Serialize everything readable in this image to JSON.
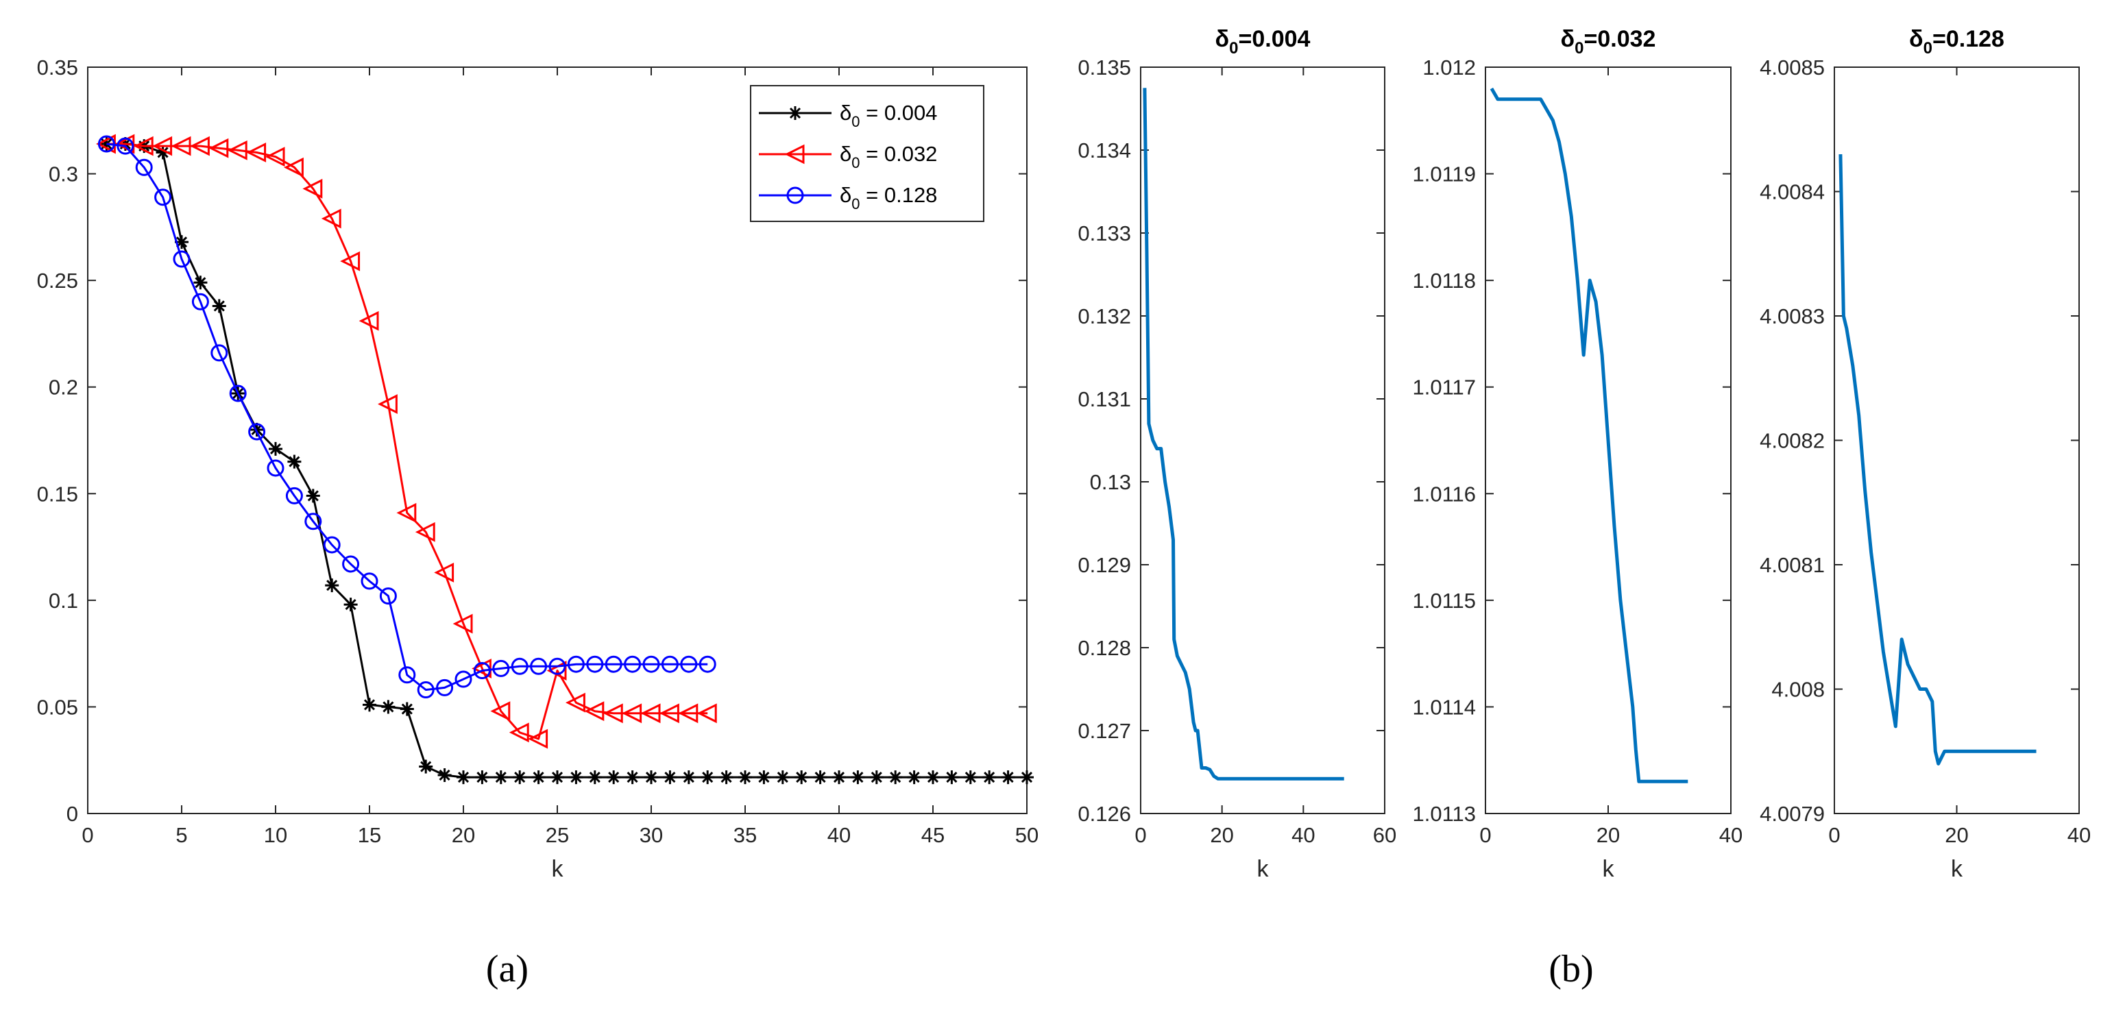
{
  "figure": {
    "panel_a_label": "(a)",
    "panel_b_label": "(b)"
  },
  "chart_data": [
    {
      "type": "line",
      "panel": "a",
      "title": "",
      "xlabel": "k",
      "ylabel": "",
      "xlim": [
        0,
        50
      ],
      "ylim": [
        0,
        0.35
      ],
      "xticks": [
        0,
        5,
        10,
        15,
        20,
        25,
        30,
        35,
        40,
        45,
        50
      ],
      "yticks": [
        0,
        0.05,
        0.1,
        0.15,
        0.2,
        0.25,
        0.3,
        0.35
      ],
      "xtick_labels": [
        "0",
        "5",
        "10",
        "15",
        "20",
        "25",
        "30",
        "35",
        "40",
        "45",
        "50"
      ],
      "ytick_labels": [
        "0",
        "0.05",
        "0.1",
        "0.15",
        "0.2",
        "0.25",
        "0.3",
        "0.35"
      ],
      "legend_position": "top-right",
      "series": [
        {
          "name": "δ0 = 0.004",
          "legend_sym": "δ",
          "legend_sub": "0",
          "legend_rest": " = 0.004",
          "color": "#000000",
          "marker": "asterisk",
          "x": [
            1,
            2,
            3,
            4,
            5,
            6,
            7,
            8,
            9,
            10,
            11,
            12,
            13,
            14,
            15,
            16,
            17,
            18,
            19,
            20,
            21,
            22,
            23,
            24,
            25,
            26,
            27,
            28,
            29,
            30,
            31,
            32,
            33,
            34,
            35,
            36,
            37,
            38,
            39,
            40,
            41,
            42,
            43,
            44,
            45,
            46,
            47,
            48,
            49,
            50
          ],
          "y": [
            0.314,
            0.314,
            0.313,
            0.31,
            0.268,
            0.249,
            0.238,
            0.197,
            0.18,
            0.171,
            0.165,
            0.149,
            0.107,
            0.098,
            0.051,
            0.05,
            0.049,
            0.022,
            0.018,
            0.017,
            0.017,
            0.017,
            0.017,
            0.017,
            0.017,
            0.017,
            0.017,
            0.017,
            0.017,
            0.017,
            0.017,
            0.017,
            0.017,
            0.017,
            0.017,
            0.017,
            0.017,
            0.017,
            0.017,
            0.017,
            0.017,
            0.017,
            0.017,
            0.017,
            0.017,
            0.017,
            0.017,
            0.017,
            0.017,
            0.017
          ]
        },
        {
          "name": "δ0 = 0.032",
          "legend_sym": "δ",
          "legend_sub": "0",
          "legend_rest": " = 0.032",
          "color": "#ff0000",
          "marker": "triangle-left",
          "x": [
            1,
            2,
            3,
            4,
            5,
            6,
            7,
            8,
            9,
            10,
            11,
            12,
            13,
            14,
            15,
            16,
            17,
            18,
            19,
            20,
            21,
            22,
            23,
            24,
            25,
            26,
            27,
            28,
            29,
            30,
            31,
            32,
            33
          ],
          "y": [
            0.314,
            0.314,
            0.313,
            0.313,
            0.313,
            0.313,
            0.312,
            0.311,
            0.31,
            0.308,
            0.303,
            0.293,
            0.279,
            0.259,
            0.231,
            0.192,
            0.141,
            0.132,
            0.113,
            0.089,
            0.068,
            0.048,
            0.038,
            0.035,
            0.067,
            0.052,
            0.048,
            0.047,
            0.047,
            0.047,
            0.047,
            0.047,
            0.047
          ]
        },
        {
          "name": "δ0 = 0.128",
          "legend_sym": "δ",
          "legend_sub": "0",
          "legend_rest": " = 0.128",
          "color": "#0000ff",
          "marker": "circle",
          "x": [
            1,
            2,
            3,
            4,
            5,
            6,
            7,
            8,
            9,
            10,
            11,
            12,
            13,
            14,
            15,
            16,
            17,
            18,
            19,
            20,
            21,
            22,
            23,
            24,
            25,
            26,
            27,
            28,
            29,
            30,
            31,
            32,
            33
          ],
          "y": [
            0.314,
            0.313,
            0.303,
            0.289,
            0.26,
            0.24,
            0.216,
            0.197,
            0.179,
            0.162,
            0.149,
            0.137,
            0.126,
            0.117,
            0.109,
            0.102,
            0.065,
            0.058,
            0.059,
            0.063,
            0.067,
            0.068,
            0.069,
            0.069,
            0.069,
            0.07,
            0.07,
            0.07,
            0.07,
            0.07,
            0.07,
            0.07,
            0.07
          ]
        }
      ]
    },
    {
      "type": "line",
      "panel": "b1",
      "title": "δ0=0.004",
      "title_sym": "δ",
      "title_sub": "0",
      "title_rest": "=0.004",
      "xlabel": "k",
      "xlim": [
        0,
        60
      ],
      "ylim": [
        0.126,
        0.135
      ],
      "xticks": [
        0,
        20,
        40,
        60
      ],
      "yticks": [
        0.126,
        0.127,
        0.128,
        0.129,
        0.13,
        0.131,
        0.132,
        0.133,
        0.134,
        0.135
      ],
      "xtick_labels": [
        "0",
        "20",
        "40",
        "60"
      ],
      "ytick_labels": [
        "0.126",
        "0.127",
        "0.128",
        "0.129",
        "0.13",
        "0.131",
        "0.132",
        "0.133",
        "0.134",
        "0.135"
      ],
      "series": [
        {
          "name": "δ0=0.004",
          "color": "#0072bd",
          "x": [
            1,
            1.5,
            2,
            2.5,
            3,
            4,
            5,
            5.5,
            6,
            7,
            8,
            8.2,
            9,
            10,
            11,
            12,
            13,
            13.5,
            14,
            15,
            15.5,
            16,
            17,
            18,
            19,
            20,
            25,
            30,
            35,
            40,
            45,
            50
          ],
          "y": [
            0.13475,
            0.1328,
            0.1307,
            0.1306,
            0.1305,
            0.1304,
            0.1304,
            0.1302,
            0.13,
            0.1297,
            0.1293,
            0.1281,
            0.1279,
            0.1278,
            0.1277,
            0.1275,
            0.1271,
            0.127,
            0.127,
            0.12655,
            0.12655,
            0.12655,
            0.12653,
            0.12645,
            0.12642,
            0.12642,
            0.12642,
            0.12642,
            0.12642,
            0.12642,
            0.12642,
            0.12642
          ]
        }
      ]
    },
    {
      "type": "line",
      "panel": "b2",
      "title": "δ0=0.032",
      "title_sym": "δ",
      "title_sub": "0",
      "title_rest": "=0.032",
      "xlabel": "k",
      "xlim": [
        0,
        40
      ],
      "ylim": [
        1.0113,
        1.012
      ],
      "xticks": [
        0,
        20,
        40
      ],
      "yticks": [
        1.0113,
        1.0114,
        1.0115,
        1.0116,
        1.0117,
        1.0118,
        1.0119,
        1.012
      ],
      "xtick_labels": [
        "0",
        "20",
        "40"
      ],
      "ytick_labels": [
        "1.0113",
        "1.0114",
        "1.0115",
        "1.0116",
        "1.0117",
        "1.0118",
        "1.0119",
        "1.012"
      ],
      "series": [
        {
          "name": "δ0=0.032",
          "color": "#0072bd",
          "x": [
            1,
            2,
            3,
            5,
            7,
            9,
            10,
            11,
            12,
            13,
            14,
            15,
            16,
            17,
            18,
            19,
            20,
            21,
            22,
            23,
            24,
            24.5,
            25,
            26,
            28,
            30,
            33
          ],
          "y": [
            1.01198,
            1.01197,
            1.01197,
            1.01197,
            1.01197,
            1.01197,
            1.01196,
            1.01195,
            1.01193,
            1.0119,
            1.01186,
            1.0118,
            1.01173,
            1.0118,
            1.01178,
            1.01173,
            1.01165,
            1.01157,
            1.0115,
            1.01145,
            1.0114,
            1.01136,
            1.01133,
            1.01133,
            1.01133,
            1.01133,
            1.01133
          ]
        }
      ]
    },
    {
      "type": "line",
      "panel": "b3",
      "title": "δ0=0.128",
      "title_sym": "δ",
      "title_sub": "0",
      "title_rest": "=0.128",
      "xlabel": "k",
      "xlim": [
        0,
        40
      ],
      "ylim": [
        4.0079,
        4.0085
      ],
      "xticks": [
        0,
        20,
        40
      ],
      "yticks": [
        4.0079,
        4.008,
        4.0081,
        4.0082,
        4.0083,
        4.0084,
        4.0085
      ],
      "xtick_labels": [
        "0",
        "20",
        "40"
      ],
      "ytick_labels": [
        "4.0079",
        "4.008",
        "4.0081",
        "4.0082",
        "4.0083",
        "4.0084",
        "4.0085"
      ],
      "series": [
        {
          "name": "δ0=0.128",
          "color": "#0072bd",
          "x": [
            1,
            1.5,
            2,
            3,
            4,
            5,
            6,
            7,
            8,
            9,
            10,
            11,
            12,
            13,
            14,
            15,
            16,
            16.5,
            17,
            18,
            19,
            20,
            22,
            25,
            28,
            30,
            33
          ],
          "y": [
            4.00843,
            4.0083,
            4.00829,
            4.00826,
            4.00822,
            4.00816,
            4.00811,
            4.00807,
            4.00803,
            4.008,
            4.00797,
            4.00804,
            4.00802,
            4.00801,
            4.008,
            4.008,
            4.00799,
            4.00795,
            4.00794,
            4.00795,
            4.00795,
            4.00795,
            4.00795,
            4.00795,
            4.00795,
            4.00795,
            4.00795
          ]
        }
      ]
    }
  ]
}
